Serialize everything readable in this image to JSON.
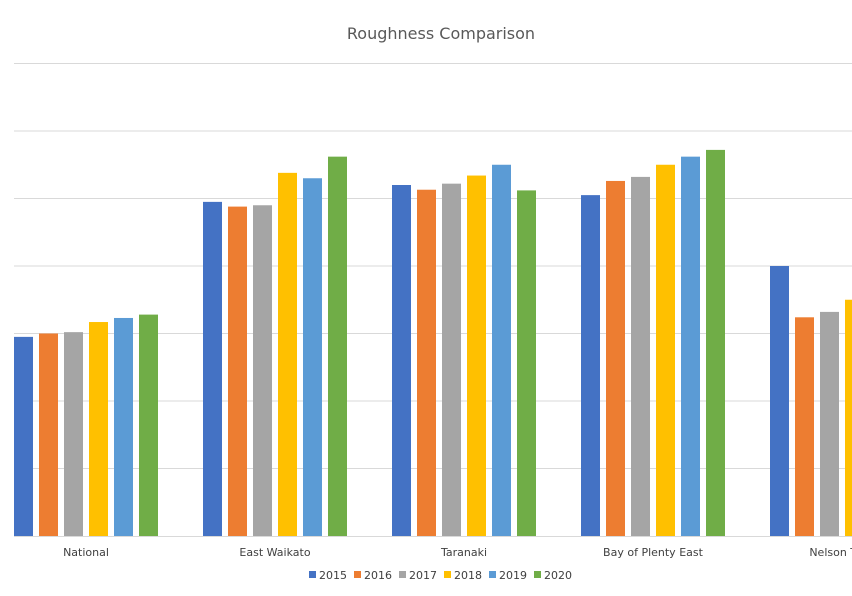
{
  "chart_data": {
    "type": "bar",
    "title": "Roughness Comparison",
    "xlabel": "",
    "ylabel": "",
    "ylim": [
      0,
      8
    ],
    "grid": true,
    "legend_position": "bottom",
    "categories": [
      "National",
      "East Waikato",
      "Taranaki",
      "Bay of Plenty East",
      "Nelson Tasn"
    ],
    "series": [
      {
        "name": "2015",
        "color": "#4472C4",
        "values": [
          2.95,
          4.95,
          5.2,
          5.05,
          4.0
        ]
      },
      {
        "name": "2016",
        "color": "#ED7D31",
        "values": [
          3.0,
          4.88,
          5.13,
          5.26,
          3.24
        ]
      },
      {
        "name": "2017",
        "color": "#A5A5A5",
        "values": [
          3.02,
          4.9,
          5.22,
          5.32,
          3.32
        ]
      },
      {
        "name": "2018",
        "color": "#FFC000",
        "values": [
          3.17,
          5.38,
          5.34,
          5.5,
          3.5
        ]
      },
      {
        "name": "2019",
        "color": "#5B9BD5",
        "values": [
          3.23,
          5.3,
          5.5,
          5.62,
          null
        ]
      },
      {
        "name": "2020",
        "color": "#70AD47",
        "values": [
          3.28,
          5.62,
          5.12,
          5.72,
          null
        ]
      }
    ]
  }
}
